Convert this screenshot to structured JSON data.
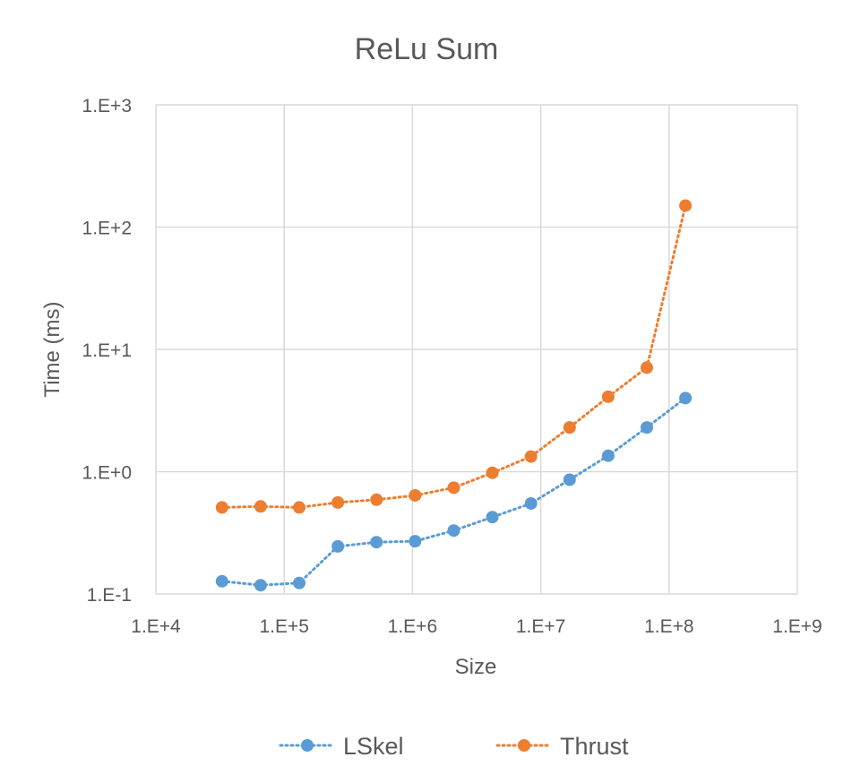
{
  "chart_data": {
    "type": "line",
    "title": "ReLu Sum",
    "xlabel": "Size",
    "ylabel": "Time (ms)",
    "x_scale": "log",
    "y_scale": "log",
    "xlim": [
      10000,
      1000000000
    ],
    "ylim": [
      0.1,
      1000
    ],
    "x_ticks": [
      10000,
      100000,
      1000000,
      10000000,
      100000000,
      1000000000
    ],
    "x_tick_labels": [
      "1.E+4",
      "1.E+5",
      "1.E+6",
      "1.E+7",
      "1.E+8",
      "1.E+9"
    ],
    "y_ticks": [
      0.1,
      1,
      10,
      100,
      1000
    ],
    "y_tick_labels": [
      "1.E-1",
      "1.E+0",
      "1.E+1",
      "1.E+2",
      "1.E+3"
    ],
    "grid": true,
    "legend_position": "bottom",
    "series": [
      {
        "name": "LSkel",
        "color": "#5b9bd5",
        "points": [
          [
            32768,
            0.127
          ],
          [
            65536,
            0.118
          ],
          [
            131072,
            0.123
          ],
          [
            262144,
            0.245
          ],
          [
            524288,
            0.265
          ],
          [
            1048576,
            0.27
          ],
          [
            2097152,
            0.33
          ],
          [
            4194304,
            0.425
          ],
          [
            8388608,
            0.55
          ],
          [
            16777216,
            0.86
          ],
          [
            33554432,
            1.35
          ],
          [
            67108864,
            2.3
          ],
          [
            134217728,
            4.0
          ]
        ]
      },
      {
        "name": "Thrust",
        "color": "#ed7d31",
        "points": [
          [
            32768,
            0.51
          ],
          [
            65536,
            0.52
          ],
          [
            131072,
            0.51
          ],
          [
            262144,
            0.56
          ],
          [
            524288,
            0.59
          ],
          [
            1048576,
            0.64
          ],
          [
            2097152,
            0.74
          ],
          [
            4194304,
            0.98
          ],
          [
            8388608,
            1.33
          ],
          [
            16777216,
            2.3
          ],
          [
            33554432,
            4.1
          ],
          [
            67108864,
            7.1
          ],
          [
            134217728,
            150
          ]
        ]
      }
    ]
  }
}
